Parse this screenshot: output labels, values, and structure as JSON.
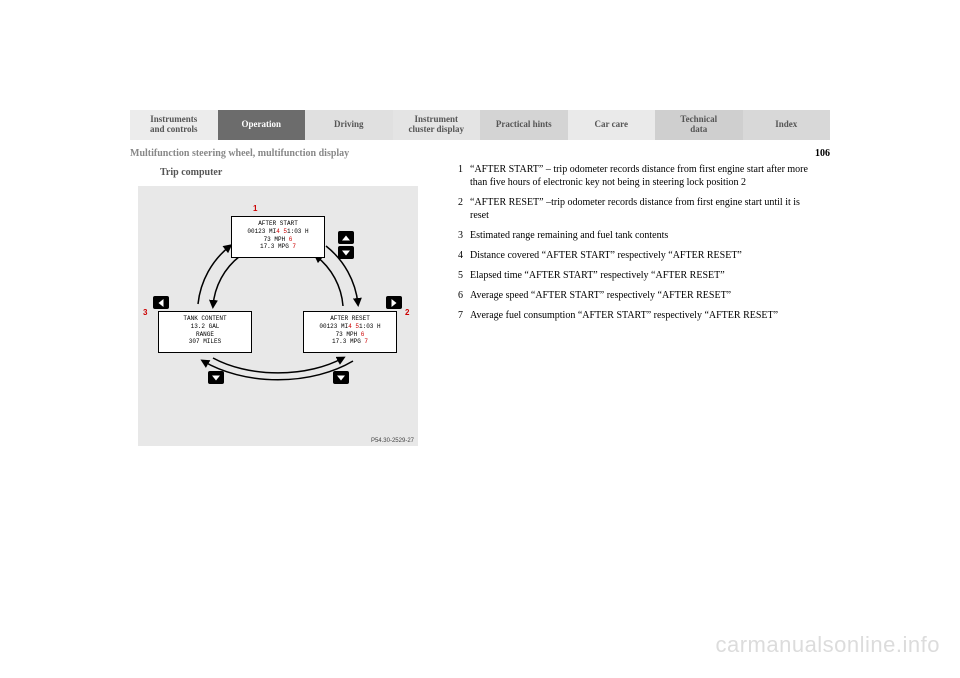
{
  "tabs": [
    {
      "label": "Instruments\nand controls"
    },
    {
      "label": "Operation"
    },
    {
      "label": "Driving"
    },
    {
      "label": "Instrument\ncluster display"
    },
    {
      "label": "Practical hints"
    },
    {
      "label": "Car care"
    },
    {
      "label": "Technical\ndata"
    },
    {
      "label": "Index"
    }
  ],
  "active_tab_index": 1,
  "section_header": "Multifunction steering wheel, multifunction display",
  "page_number": "106",
  "section_title": "Trip computer",
  "diagram": {
    "ref_code": "P54.30-2529-27",
    "markers": {
      "top": "1",
      "right": "2",
      "left": "3"
    },
    "screens": {
      "after_start": {
        "title": "AFTER START",
        "line1_a": "00123 MI",
        "line1_m": "4",
        "line1_b": "   5",
        "line1_c": "1:03 H",
        "line2_a": "73 MPH",
        "line2_m": "6",
        "line3_a": "17.3 MPG",
        "line3_m": "7"
      },
      "after_reset": {
        "title": "AFTER RESET",
        "line1_a": "00123 MI",
        "line1_m": "4",
        "line1_b": "   5",
        "line1_c": "1:03 H",
        "line2_a": "73 MPH",
        "line2_m": "6",
        "line3_a": "17.3 MPG",
        "line3_m": "7"
      },
      "tank": {
        "l1": "TANK CONTENT",
        "l2": "13.2 GAL",
        "l3": "RANGE",
        "l4": "307 MILES"
      }
    }
  },
  "legend": [
    {
      "n": "1",
      "t": "“AFTER START” – trip odometer records distance from first engine start after more than five hours of electronic key not being in steering lock position 2"
    },
    {
      "n": "2",
      "t": "“AFTER RESET” –trip odometer records distance from first engine start until it is reset"
    },
    {
      "n": "3",
      "t": "Estimated range remaining and fuel tank contents"
    },
    {
      "n": "4",
      "t": "Distance covered “AFTER START” respectively “AFTER RESET”"
    },
    {
      "n": "5",
      "t": "Elapsed time “AFTER START” respectively “AFTER RESET”"
    },
    {
      "n": "6",
      "t": "Average speed “AFTER START” respectively “AFTER RESET”"
    },
    {
      "n": "7",
      "t": "Average fuel consumption “AFTER START” respectively “AFTER RESET”"
    }
  ],
  "watermark": "carmanualsonline.info"
}
